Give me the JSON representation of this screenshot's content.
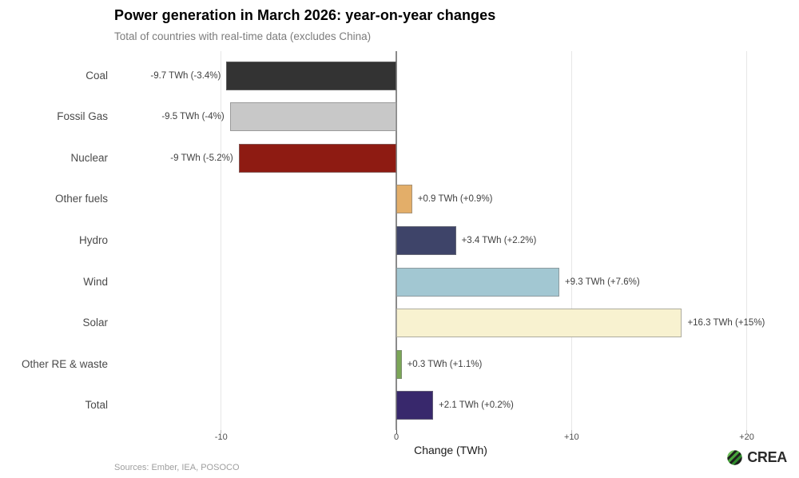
{
  "header": {
    "title": "Power generation in March 2026: year-on-year changes",
    "subtitle": "Total of countries with real-time data (excludes China)"
  },
  "chart_data": {
    "type": "bar",
    "orientation": "horizontal",
    "title": "Power generation in March 2026: year-on-year changes",
    "subtitle": "Total of countries with real-time data (excludes China)",
    "categories": [
      "Coal",
      "Fossil Gas",
      "Nuclear",
      "Other fuels",
      "Hydro",
      "Wind",
      "Solar",
      "Other RE & waste",
      "Total"
    ],
    "values": [
      -9.7,
      -9.5,
      -9,
      0.9,
      3.4,
      9.3,
      16.3,
      0.3,
      2.1
    ],
    "value_labels": [
      "-9.7 TWh (-3.4%)",
      "-9.5 TWh (-4%)",
      "-9 TWh (-5.2%)",
      "+0.9 TWh (+0.9%)",
      "+3.4 TWh (+2.2%)",
      "+9.3 TWh (+7.6%)",
      "+16.3 TWh (+15%)",
      "+0.3 TWh (+1.1%)",
      "+2.1 TWh (+0.2%)"
    ],
    "bar_colors": [
      "#333333",
      "#c8c8c8",
      "#8e1b12",
      "#e3ae69",
      "#3e4469",
      "#a2c7d2",
      "#f8f2d0",
      "#7ba657",
      "#38286c"
    ],
    "xlabel": "Change (TWh)",
    "xlim": [
      -16.1,
      22.3
    ],
    "xticks": [
      {
        "value": -10,
        "label": "-10"
      },
      {
        "value": 0,
        "label": "0"
      },
      {
        "value": 10,
        "label": "+10"
      },
      {
        "value": 20,
        "label": "+20"
      }
    ],
    "grid": "vertical gridlines at ticks, darker line at zero",
    "legend": "none"
  },
  "footer": {
    "sources": "Sources: Ember, IEA, POSOCO",
    "logo_text": "CREA"
  },
  "icons": {
    "logo_icon": "crea-striped-globe-icon"
  },
  "colors": {
    "brand_green": "#3f9c35",
    "zero_line": "#8a8a8a",
    "gridline": "#e7e7e7",
    "value_label_text": "#404040",
    "category_label_text": "#4a4a4a"
  }
}
